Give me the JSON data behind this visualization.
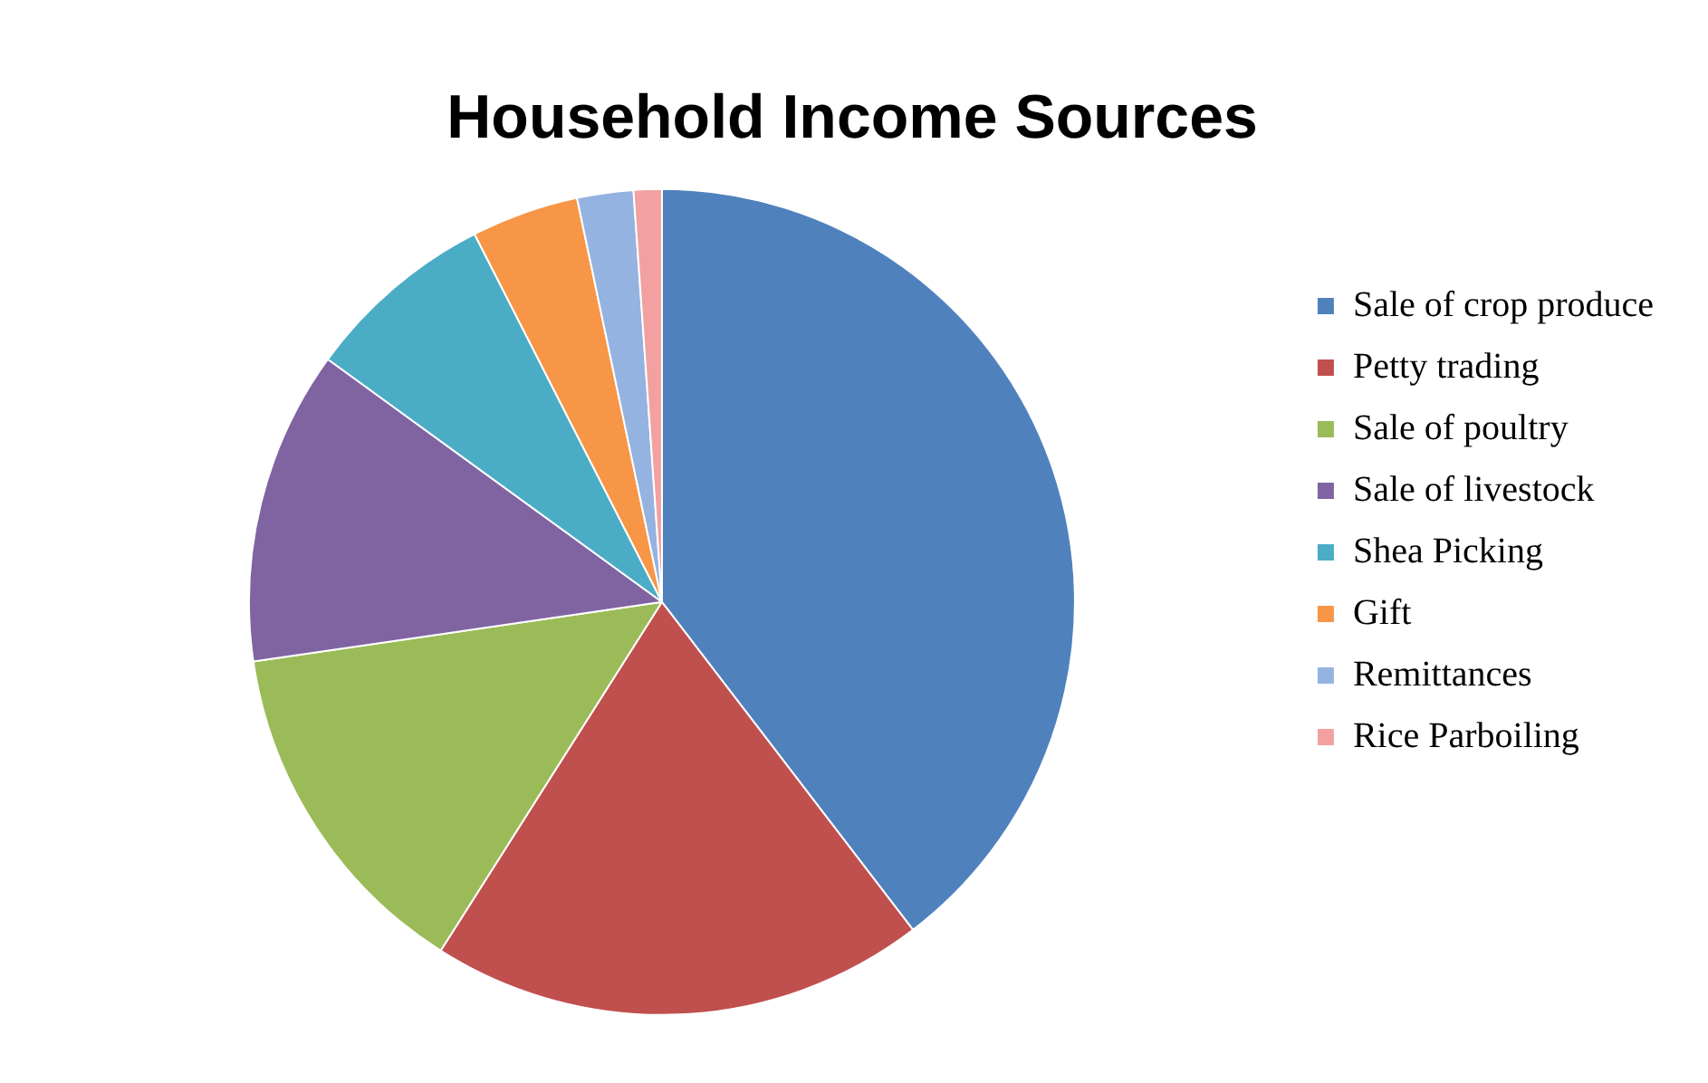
{
  "chart_data": {
    "type": "pie",
    "title": "Household Income Sources",
    "categories": [
      "Sale of crop produce",
      "Petty trading",
      "Sale of poultry",
      "Sale of livestock",
      "Shea Picking",
      "Gift",
      "Remittances",
      "Rice Parboiling"
    ],
    "values": [
      39.6,
      19.4,
      13.7,
      12.3,
      7.5,
      4.2,
      2.2,
      1.1
    ],
    "colors": [
      "#4f81bd",
      "#c0504d",
      "#9bbb59",
      "#8064a2",
      "#4bacc6",
      "#f79646",
      "#95b3e0",
      "#f2a0a0"
    ],
    "legend": "right"
  }
}
